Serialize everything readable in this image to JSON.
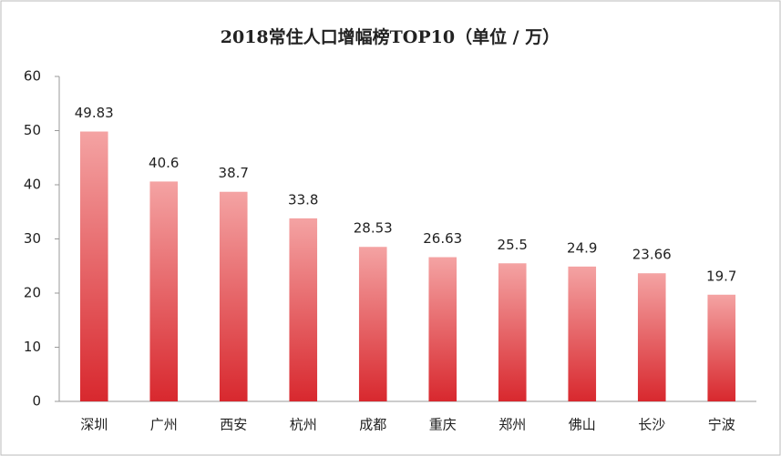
{
  "chart_data": {
    "type": "bar",
    "title": "2018常住人口增幅榜TOP10（单位 / 万）",
    "categories": [
      "深圳",
      "广州",
      "西安",
      "杭州",
      "成都",
      "重庆",
      "郑州",
      "佛山",
      "长沙",
      "宁波"
    ],
    "values": [
      49.83,
      40.6,
      38.7,
      33.8,
      28.53,
      26.63,
      25.5,
      24.9,
      23.66,
      19.7
    ],
    "color": "#d8282e",
    "color_top": "#f4a3a3",
    "ylim": [
      0,
      60
    ],
    "yticks": [
      0,
      10,
      20,
      30,
      40,
      50,
      60
    ],
    "grid": false
  }
}
